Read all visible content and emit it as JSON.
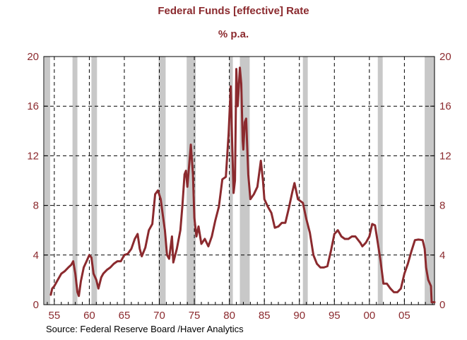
{
  "chart_data": {
    "type": "line",
    "title": "Federal Funds [effective] Rate",
    "subtitle": "% p.a.",
    "source": "Source:  Federal Reserve Board /Haver Analytics",
    "xlim": [
      1953.5,
      2009.3
    ],
    "ylim": [
      0,
      20
    ],
    "x_ticks": [
      1955,
      1960,
      1965,
      1970,
      1975,
      1980,
      1985,
      1990,
      1995,
      2000,
      2005
    ],
    "x_tick_labels": [
      "55",
      "60",
      "65",
      "70",
      "75",
      "80",
      "85",
      "90",
      "95",
      "00",
      "05"
    ],
    "y_ticks": [
      0,
      4,
      8,
      12,
      16,
      20
    ],
    "y_tick_labels": [
      "0",
      "4",
      "8",
      "12",
      "16",
      "20"
    ],
    "grid": true,
    "colors": {
      "line": "#8b2a2e",
      "recession": "#c8c8c8",
      "text": "#8b2a2e"
    },
    "recessions": [
      [
        1953.6,
        1954.4
      ],
      [
        1957.6,
        1958.3
      ],
      [
        1960.3,
        1961.1
      ],
      [
        1969.9,
        1970.9
      ],
      [
        1973.9,
        1975.2
      ],
      [
        1980.0,
        1980.5
      ],
      [
        1981.5,
        1982.9
      ],
      [
        1990.5,
        1991.2
      ],
      [
        2001.2,
        2001.9
      ],
      [
        2007.9,
        2009.3
      ]
    ],
    "series": [
      {
        "points": [
          [
            1954.5,
            0.8
          ],
          [
            1954.7,
            1.3
          ],
          [
            1955.0,
            1.5
          ],
          [
            1955.5,
            2.0
          ],
          [
            1956.0,
            2.5
          ],
          [
            1956.5,
            2.7
          ],
          [
            1957.0,
            3.0
          ],
          [
            1957.4,
            3.2
          ],
          [
            1957.7,
            3.5
          ],
          [
            1958.0,
            2.5
          ],
          [
            1958.3,
            1.0
          ],
          [
            1958.5,
            0.7
          ],
          [
            1958.8,
            1.9
          ],
          [
            1959.2,
            3.0
          ],
          [
            1959.6,
            3.5
          ],
          [
            1960.0,
            4.0
          ],
          [
            1960.3,
            3.8
          ],
          [
            1960.6,
            2.5
          ],
          [
            1961.0,
            2.0
          ],
          [
            1961.3,
            1.3
          ],
          [
            1961.7,
            2.2
          ],
          [
            1962.0,
            2.5
          ],
          [
            1962.5,
            2.8
          ],
          [
            1963.0,
            3.0
          ],
          [
            1963.5,
            3.3
          ],
          [
            1964.0,
            3.5
          ],
          [
            1964.5,
            3.5
          ],
          [
            1965.0,
            4.0
          ],
          [
            1965.5,
            4.1
          ],
          [
            1966.0,
            4.5
          ],
          [
            1966.5,
            5.3
          ],
          [
            1966.9,
            5.7
          ],
          [
            1967.2,
            4.5
          ],
          [
            1967.5,
            3.9
          ],
          [
            1968.0,
            4.6
          ],
          [
            1968.5,
            6.0
          ],
          [
            1969.0,
            6.5
          ],
          [
            1969.4,
            8.9
          ],
          [
            1969.8,
            9.2
          ],
          [
            1970.2,
            8.5
          ],
          [
            1970.5,
            7.2
          ],
          [
            1970.8,
            6.0
          ],
          [
            1971.1,
            4.0
          ],
          [
            1971.4,
            3.7
          ],
          [
            1971.8,
            5.5
          ],
          [
            1972.0,
            3.4
          ],
          [
            1972.5,
            4.5
          ],
          [
            1973.0,
            6.0
          ],
          [
            1973.3,
            8.0
          ],
          [
            1973.6,
            10.5
          ],
          [
            1973.8,
            10.8
          ],
          [
            1974.0,
            9.5
          ],
          [
            1974.3,
            11.5
          ],
          [
            1974.5,
            12.9
          ],
          [
            1974.8,
            10.5
          ],
          [
            1975.0,
            7.0
          ],
          [
            1975.3,
            5.5
          ],
          [
            1975.6,
            6.3
          ],
          [
            1976.0,
            4.9
          ],
          [
            1976.5,
            5.3
          ],
          [
            1977.0,
            4.7
          ],
          [
            1977.5,
            5.5
          ],
          [
            1978.0,
            6.8
          ],
          [
            1978.5,
            7.9
          ],
          [
            1979.0,
            10.1
          ],
          [
            1979.5,
            10.3
          ],
          [
            1979.9,
            13.8
          ],
          [
            1980.2,
            17.6
          ],
          [
            1980.4,
            13.0
          ],
          [
            1980.6,
            9.0
          ],
          [
            1980.8,
            10.0
          ],
          [
            1981.0,
            19.0
          ],
          [
            1981.2,
            16.0
          ],
          [
            1981.5,
            19.1
          ],
          [
            1981.7,
            17.8
          ],
          [
            1981.9,
            13.2
          ],
          [
            1982.0,
            12.5
          ],
          [
            1982.2,
            14.7
          ],
          [
            1982.4,
            15.0
          ],
          [
            1982.7,
            10.5
          ],
          [
            1983.0,
            8.5
          ],
          [
            1983.5,
            8.9
          ],
          [
            1984.0,
            9.5
          ],
          [
            1984.5,
            11.6
          ],
          [
            1984.8,
            10.0
          ],
          [
            1985.0,
            8.5
          ],
          [
            1985.5,
            7.9
          ],
          [
            1986.0,
            7.4
          ],
          [
            1986.5,
            6.2
          ],
          [
            1987.0,
            6.3
          ],
          [
            1987.5,
            6.6
          ],
          [
            1988.0,
            6.6
          ],
          [
            1988.5,
            7.8
          ],
          [
            1989.0,
            9.1
          ],
          [
            1989.3,
            9.8
          ],
          [
            1989.8,
            8.5
          ],
          [
            1990.5,
            8.2
          ],
          [
            1991.0,
            6.9
          ],
          [
            1991.5,
            5.8
          ],
          [
            1992.0,
            4.0
          ],
          [
            1992.5,
            3.3
          ],
          [
            1993.0,
            3.0
          ],
          [
            1993.5,
            3.0
          ],
          [
            1994.0,
            3.1
          ],
          [
            1994.5,
            4.3
          ],
          [
            1995.0,
            5.7
          ],
          [
            1995.5,
            6.0
          ],
          [
            1996.0,
            5.5
          ],
          [
            1996.5,
            5.3
          ],
          [
            1997.0,
            5.3
          ],
          [
            1997.5,
            5.5
          ],
          [
            1998.0,
            5.5
          ],
          [
            1998.7,
            5.0
          ],
          [
            1999.0,
            4.7
          ],
          [
            1999.5,
            5.0
          ],
          [
            2000.0,
            5.5
          ],
          [
            2000.4,
            6.5
          ],
          [
            2000.8,
            6.4
          ],
          [
            2001.2,
            5.0
          ],
          [
            2001.6,
            3.5
          ],
          [
            2002.0,
            1.7
          ],
          [
            2002.5,
            1.7
          ],
          [
            2003.0,
            1.3
          ],
          [
            2003.5,
            1.0
          ],
          [
            2004.0,
            1.0
          ],
          [
            2004.5,
            1.3
          ],
          [
            2005.0,
            2.5
          ],
          [
            2005.5,
            3.3
          ],
          [
            2006.0,
            4.3
          ],
          [
            2006.5,
            5.2
          ],
          [
            2007.0,
            5.25
          ],
          [
            2007.6,
            5.2
          ],
          [
            2007.9,
            4.5
          ],
          [
            2008.1,
            3.0
          ],
          [
            2008.4,
            2.0
          ],
          [
            2008.8,
            1.5
          ],
          [
            2008.9,
            0.2
          ],
          [
            2009.3,
            0.2
          ]
        ]
      }
    ]
  }
}
